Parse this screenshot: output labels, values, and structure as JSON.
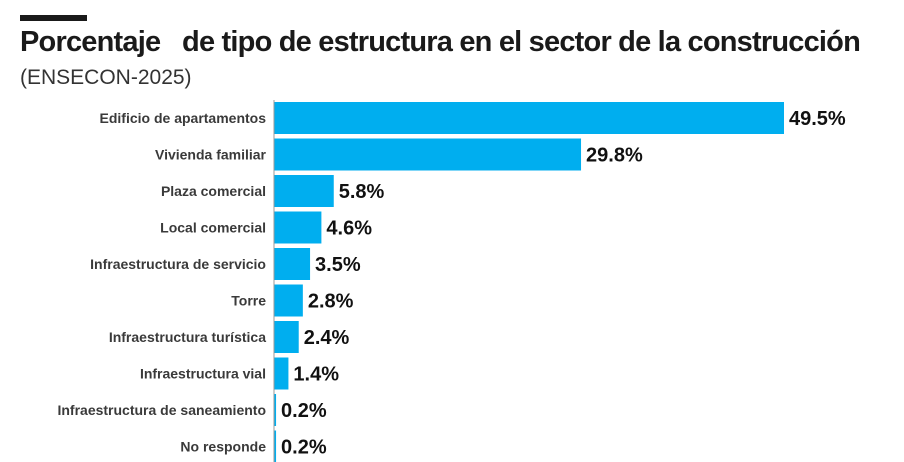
{
  "header": {
    "title": "Porcentaje   de tipo de estructura en el sector de la construcción",
    "subtitle": "(ENSECON-2025)"
  },
  "colors": {
    "bar": "#00AEEF",
    "axis": "#9a9a9a",
    "text": "#1a1a1a"
  },
  "chart_data": {
    "type": "bar",
    "orientation": "horizontal",
    "title": "Porcentaje   de tipo de estructura en el sector de la construcción",
    "subtitle": "(ENSECON-2025)",
    "categories": [
      "Edificio de apartamentos",
      "Vivienda familiar",
      "Plaza comercial",
      "Local comercial",
      "Infraestructura de servicio",
      "Torre",
      "Infraestructura turística",
      "Infraestructura vial",
      "Infraestructura de saneamiento",
      "No responde"
    ],
    "values": [
      49.5,
      29.8,
      5.8,
      4.6,
      3.5,
      2.8,
      2.4,
      1.4,
      0.2,
      0.2
    ],
    "value_labels": [
      "49.5%",
      "29.8%",
      "5.8%",
      "4.6%",
      "3.5%",
      "2.8%",
      "2.4%",
      "1.4%",
      "0.2%",
      "0.2%"
    ],
    "xlim": [
      0,
      49.5
    ],
    "grid": false,
    "legend": "none"
  }
}
